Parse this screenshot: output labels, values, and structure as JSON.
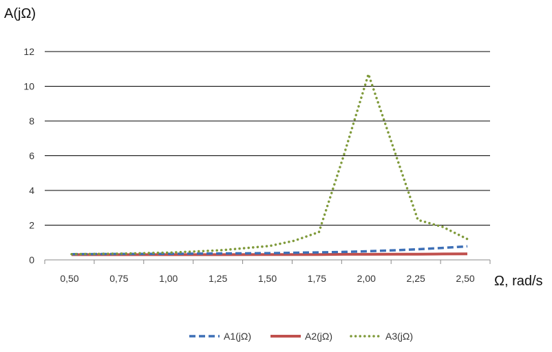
{
  "chart_data": {
    "type": "line",
    "ylabel": "A(jΩ)",
    "xlabel": "Ω, rad/s",
    "ylim": [
      0,
      12
    ],
    "yticks": [
      "0",
      "2",
      "4",
      "6",
      "8",
      "10",
      "12"
    ],
    "categories": [
      "0,50",
      "0,75",
      "1,00",
      "1,25",
      "1,50",
      "1,75",
      "2,00",
      "2,25",
      "2,50"
    ],
    "grid": true,
    "legend_position": "bottom",
    "x": [
      0.5,
      0.75,
      1.0,
      1.25,
      1.5,
      1.625,
      1.75,
      1.875,
      2.0,
      2.125,
      2.25,
      2.375,
      2.5
    ],
    "series": [
      {
        "name": "A1(jΩ)",
        "color": "#3d6fb6",
        "style": "dashed",
        "values": [
          0.33,
          0.34,
          0.35,
          0.37,
          0.39,
          0.41,
          0.43,
          0.46,
          0.5,
          0.55,
          0.61,
          0.69,
          0.78
        ]
      },
      {
        "name": "A2(jΩ)",
        "color": "#c0504d",
        "style": "solid",
        "values": [
          0.3,
          0.3,
          0.3,
          0.3,
          0.31,
          0.31,
          0.31,
          0.32,
          0.32,
          0.33,
          0.33,
          0.34,
          0.35
        ]
      },
      {
        "name": "A3(jΩ)",
        "color": "#7f9a3a",
        "style": "dotted",
        "values": [
          0.33,
          0.36,
          0.42,
          0.55,
          0.8,
          1.1,
          1.6,
          6.0,
          10.7,
          6.5,
          2.3,
          1.9,
          1.2
        ]
      }
    ]
  }
}
